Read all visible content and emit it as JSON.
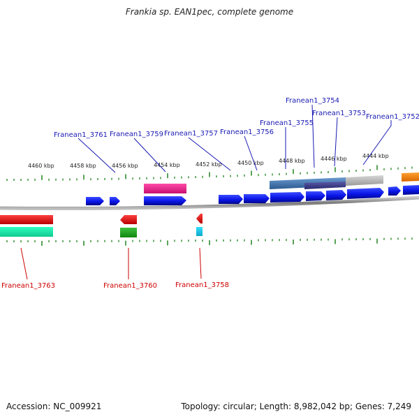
{
  "title": "Frankia sp. EAN1pec, complete genome",
  "footer": {
    "accession": "Accession: NC_009921",
    "summary": "Topology: circular; Length: 8,982,042 bp; Genes: 7,249"
  },
  "colors": {
    "forward_label": "#1a1ab4",
    "reverse_label": "#cc0000",
    "backbone": "#8a8a8a",
    "tick": "#2e8b2e",
    "forward_gene": "#0a14e6"
  },
  "scale_labels": [
    "4460 kbp",
    "4458 kbp",
    "4456 kbp",
    "4454 kbp",
    "4452 kbp",
    "4450 kbp",
    "4448 kbp",
    "4446 kbp",
    "4444 kbp"
  ],
  "forward_labels": [
    "Franean1_3761",
    "Franean1_3759",
    "Franean1_3757",
    "Franean1_3756",
    "Franean1_3755",
    "Franean1_3754",
    "Franean1_3753",
    "Franean1_3752"
  ],
  "reverse_labels": [
    "Franean1_3763",
    "Franean1_3760",
    "Franean1_3758"
  ]
}
